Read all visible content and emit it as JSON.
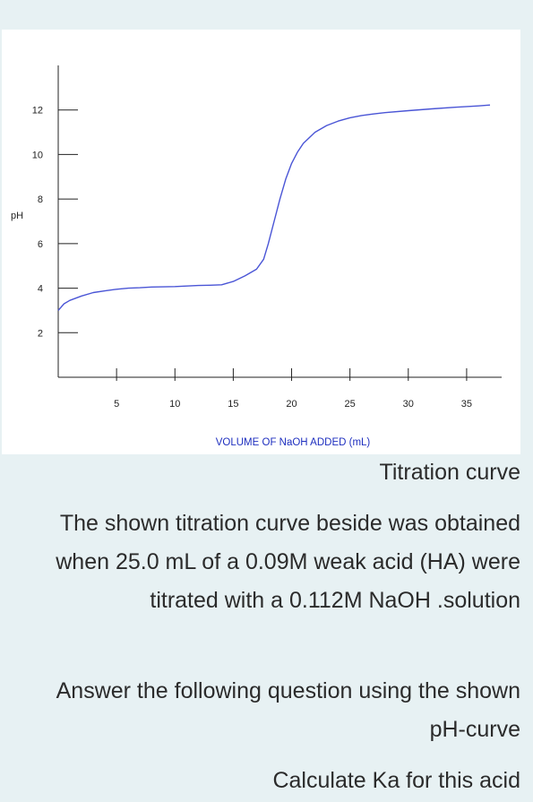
{
  "chart_data": {
    "type": "line",
    "title": "",
    "xlabel": "VOLUME OF NaOH ADDED (mL)",
    "ylabel": "pH",
    "xlim": [
      0,
      38
    ],
    "ylim": [
      0,
      14
    ],
    "x_ticks": [
      5,
      10,
      15,
      20,
      25,
      30,
      35
    ],
    "y_ticks": [
      2,
      4,
      6,
      8,
      10,
      12
    ],
    "grid": false,
    "line_color": "#4a55d6",
    "series": [
      {
        "x": [
          0,
          0.5,
          1,
          2,
          3,
          4,
          5,
          6,
          7,
          8,
          10,
          12,
          13,
          14,
          15,
          16,
          17,
          17.6,
          18,
          18.5,
          19,
          19.5,
          20,
          20.5,
          21,
          22,
          23,
          24,
          25,
          26,
          27,
          28,
          30,
          32,
          34,
          36,
          37
        ],
        "y": [
          3.0,
          3.3,
          3.45,
          3.65,
          3.8,
          3.88,
          3.95,
          4.0,
          4.02,
          4.05,
          4.07,
          4.12,
          4.13,
          4.15,
          4.3,
          4.55,
          4.85,
          5.3,
          6.0,
          7.0,
          8.0,
          8.9,
          9.6,
          10.1,
          10.5,
          11.0,
          11.3,
          11.5,
          11.65,
          11.75,
          11.82,
          11.88,
          11.97,
          12.05,
          12.12,
          12.18,
          12.22
        ]
      }
    ]
  },
  "texts": {
    "caption": "Titration curve",
    "question": "The shown titration curve beside was obtained when 25.0 mL of a 0.09M weak acid (HA) were titrated with a 0.112M NaOH .solution",
    "answer_prompt": "Answer the following question using the shown pH-curve",
    "calc": "Calculate Ka for this acid"
  }
}
